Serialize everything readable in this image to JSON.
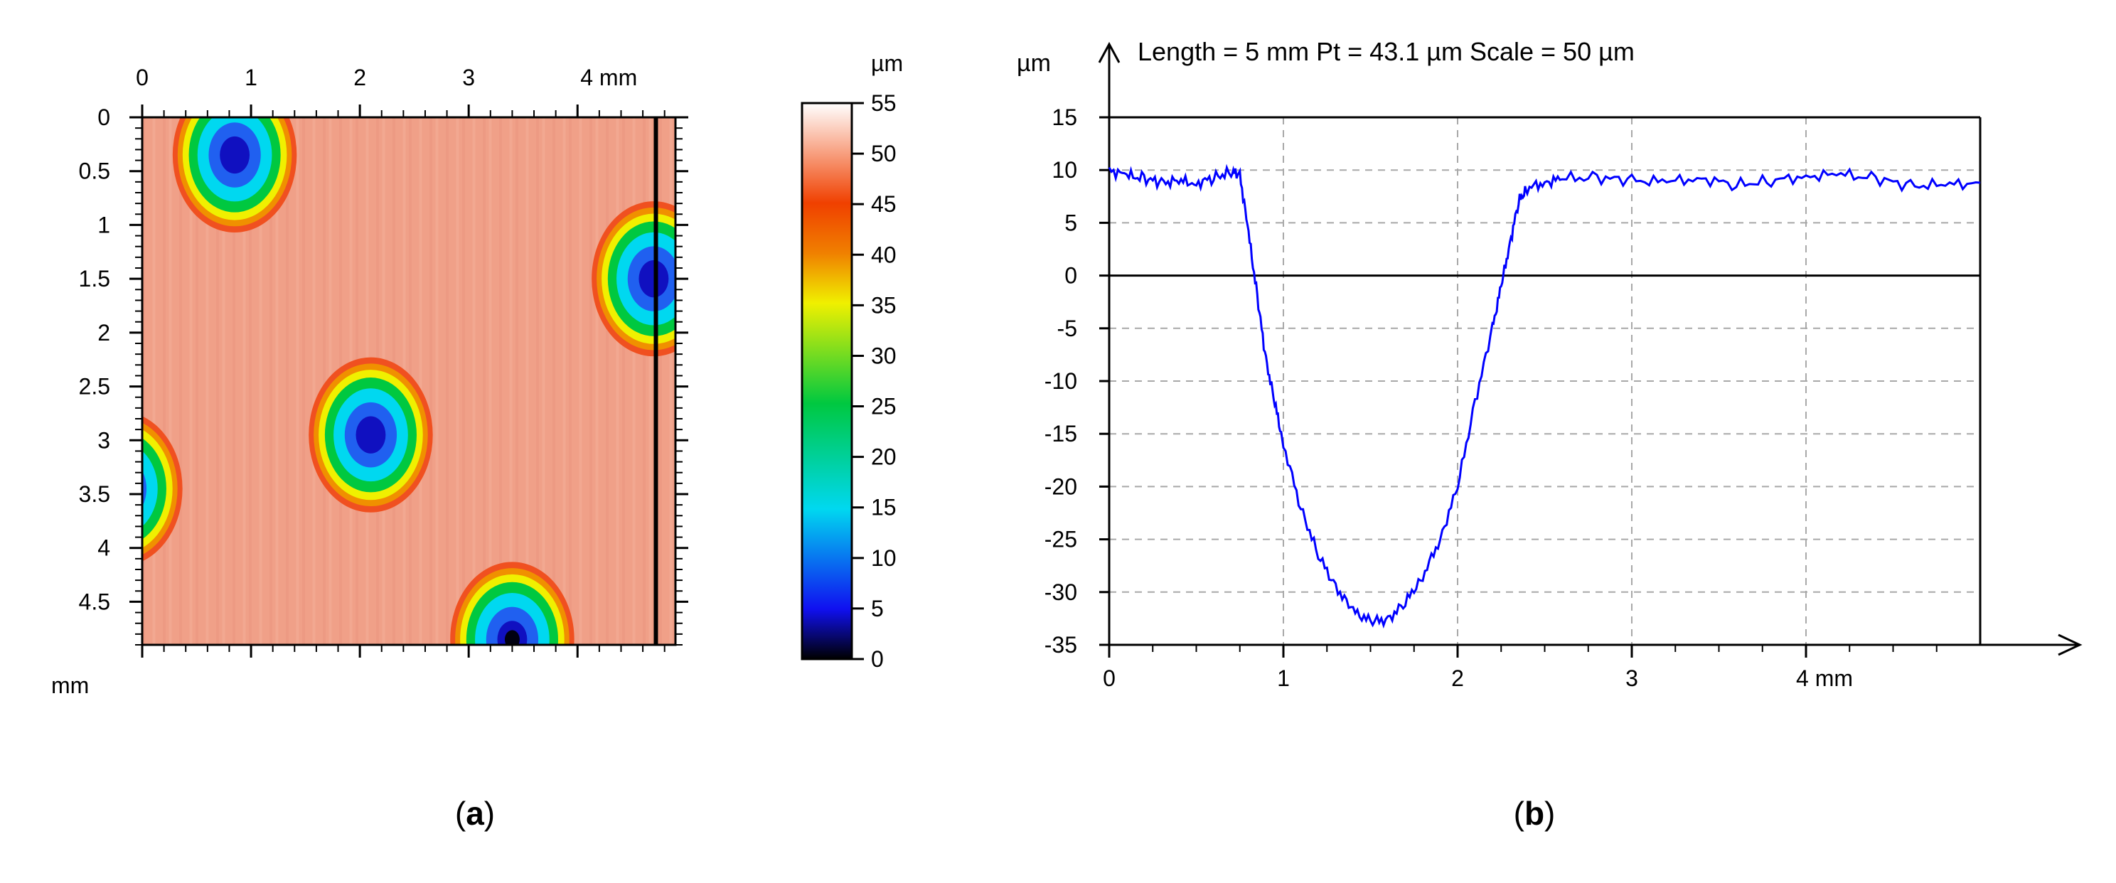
{
  "panel_labels": {
    "a": "a",
    "b": "b"
  },
  "chart_data": [
    {
      "type": "heatmap",
      "panel": "a",
      "x_unit": "mm",
      "y_unit": "mm",
      "x_ticks": [
        {
          "value": 0,
          "label": "0"
        },
        {
          "value": 1,
          "label": "1"
        },
        {
          "value": 2,
          "label": "2"
        },
        {
          "value": 3,
          "label": "3"
        },
        {
          "value": 4,
          "label": "4 mm"
        }
      ],
      "y_ticks": [
        {
          "value": 0,
          "label": "0"
        },
        {
          "value": 0.5,
          "label": "0.5"
        },
        {
          "value": 1,
          "label": "1"
        },
        {
          "value": 1.5,
          "label": "1.5"
        },
        {
          "value": 2,
          "label": "2"
        },
        {
          "value": 2.5,
          "label": "2.5"
        },
        {
          "value": 3,
          "label": "3"
        },
        {
          "value": 3.5,
          "label": "3.5"
        },
        {
          "value": 4,
          "label": "4"
        },
        {
          "value": 4.5,
          "label": "4.5"
        }
      ],
      "y_axis_unit_label": "mm",
      "xlim": [
        0,
        4.9
      ],
      "ylim": [
        0,
        4.9
      ],
      "background_height": 46,
      "craters": [
        {
          "x": 0.85,
          "y": 0.35,
          "min_depth": 6
        },
        {
          "x": 4.7,
          "y": 1.5,
          "min_depth": 3
        },
        {
          "x": 2.1,
          "y": 2.95,
          "min_depth": 9
        },
        {
          "x": -0.2,
          "y": 3.45,
          "min_depth": 12
        },
        {
          "x": 3.4,
          "y": 4.85,
          "min_depth": 0
        }
      ],
      "profile_line_x": 4.72,
      "colorbar": {
        "unit": "µm",
        "range": [
          0,
          55
        ],
        "ticks": [
          0,
          5,
          10,
          15,
          20,
          25,
          30,
          35,
          40,
          45,
          50,
          55
        ],
        "colors": [
          "#000000",
          "#1010f0",
          "#00d8f0",
          "#00c840",
          "#f0f000",
          "#f08000",
          "#f04000",
          "#ffffff"
        ]
      }
    },
    {
      "type": "line",
      "panel": "b",
      "title": "Length = 5 mm  Pt = 43.1 µm  Scale = 50 µm",
      "ylabel": "µm",
      "x_unit_label": "4 mm",
      "xlim": [
        0,
        5
      ],
      "ylim": [
        -35,
        15
      ],
      "grid": true,
      "x_ticks": [
        {
          "value": 0,
          "label": "0"
        },
        {
          "value": 1,
          "label": "1"
        },
        {
          "value": 2,
          "label": "2"
        },
        {
          "value": 3,
          "label": "3"
        },
        {
          "value": 4,
          "label": "4 mm"
        }
      ],
      "y_ticks": [
        15,
        10,
        5,
        0,
        -5,
        -10,
        -15,
        -20,
        -25,
        -30,
        -35
      ],
      "line_color": "#0000ff",
      "series": [
        {
          "x": [
            0,
            0.1,
            0.2,
            0.3,
            0.4,
            0.5,
            0.6,
            0.7,
            0.75,
            0.8,
            0.85,
            0.9,
            0.95,
            1.0,
            1.1,
            1.2,
            1.3,
            1.4,
            1.5,
            1.6,
            1.7,
            1.8,
            1.9,
            2.0,
            2.1,
            2.2,
            2.25,
            2.3,
            2.35,
            2.4,
            2.5,
            2.6,
            2.8,
            3.0,
            3.2,
            3.4,
            3.6,
            3.8,
            4.0,
            4.2,
            4.4,
            4.6,
            4.8,
            5.0
          ],
          "y": [
            10,
            9.5,
            9.2,
            8.8,
            9.0,
            8.7,
            9.3,
            9.8,
            9.6,
            4.0,
            -2.0,
            -8.0,
            -12.0,
            -16.0,
            -22.0,
            -26.5,
            -29.5,
            -31.8,
            -32.8,
            -32.6,
            -31.0,
            -28.5,
            -25.0,
            -20.0,
            -12.0,
            -5.0,
            -1.0,
            3.0,
            7.0,
            8.3,
            8.8,
            9.2,
            9.3,
            9.0,
            8.9,
            9.2,
            8.6,
            9.0,
            9.4,
            9.6,
            9.2,
            8.5,
            8.6,
            8.8
          ]
        }
      ]
    }
  ]
}
